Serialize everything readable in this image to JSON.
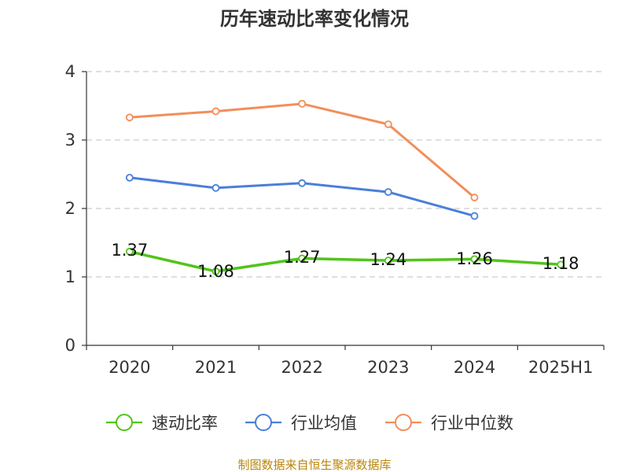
{
  "chart_data": {
    "type": "line",
    "title": "历年速动比率变化情况",
    "categories": [
      "2020",
      "2021",
      "2022",
      "2023",
      "2024",
      "2025H1"
    ],
    "ylim": [
      0,
      4
    ],
    "yticks": [
      "0",
      "1",
      "2",
      "3",
      "4"
    ],
    "grid": true,
    "legend_position": "bottom",
    "series": [
      {
        "name": "速动比率",
        "color": "#52c41a",
        "values": [
          1.37,
          1.08,
          1.27,
          1.24,
          1.26,
          1.18
        ],
        "labels": [
          "1.37",
          "1.08",
          "1.27",
          "1.24",
          "1.26",
          "1.18"
        ]
      },
      {
        "name": "行业均值",
        "color": "#4a7fd8",
        "values": [
          2.45,
          2.3,
          2.37,
          2.24,
          1.89,
          null
        ]
      },
      {
        "name": "行业中位数",
        "color": "#f28e5a",
        "values": [
          3.33,
          3.42,
          3.53,
          3.23,
          2.16,
          null
        ]
      }
    ],
    "source": "制图数据来自恒生聚源数据库"
  }
}
